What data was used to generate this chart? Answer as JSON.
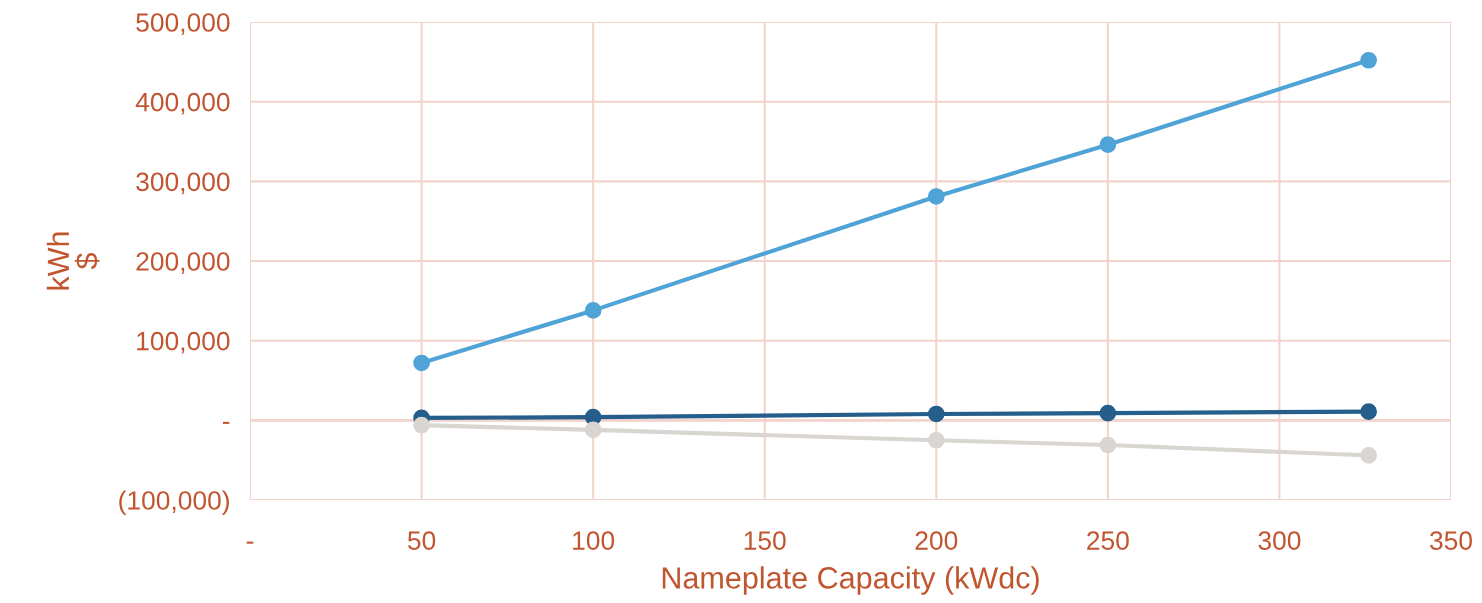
{
  "chart_data": {
    "type": "line",
    "xlabel": "Nameplate Capacity (kWdc)",
    "ylabel": "kWh\n$",
    "x": [
      50,
      100,
      200,
      250,
      326
    ],
    "series": [
      {
        "color": "#4fa3d6",
        "values": [
          72000,
          138000,
          281000,
          346000,
          452000
        ]
      },
      {
        "color": "#255e8a",
        "values": [
          3000,
          4000,
          8000,
          9000,
          11000
        ]
      },
      {
        "color": "#d9d5d0",
        "values": [
          -6000,
          -12000,
          -25000,
          -31000,
          -44000
        ]
      }
    ],
    "xlim": [
      0,
      350
    ],
    "xticks": [
      {
        "value": 0,
        "label": "-"
      },
      50,
      100,
      150,
      200,
      250,
      300,
      350
    ],
    "ylim": [
      -100000,
      500000
    ],
    "yticks": [
      {
        "value": -100000,
        "label": "(100,000)"
      },
      {
        "value": 0,
        "label": "-"
      },
      {
        "value": 100000,
        "label": "100,000"
      },
      {
        "value": 200000,
        "label": "200,000"
      },
      {
        "value": 300000,
        "label": "300,000"
      },
      {
        "value": 400000,
        "label": "400,000"
      },
      {
        "value": 500000,
        "label": "500,000"
      }
    ],
    "grid": true,
    "marker": "circle",
    "line_style": "solid"
  }
}
